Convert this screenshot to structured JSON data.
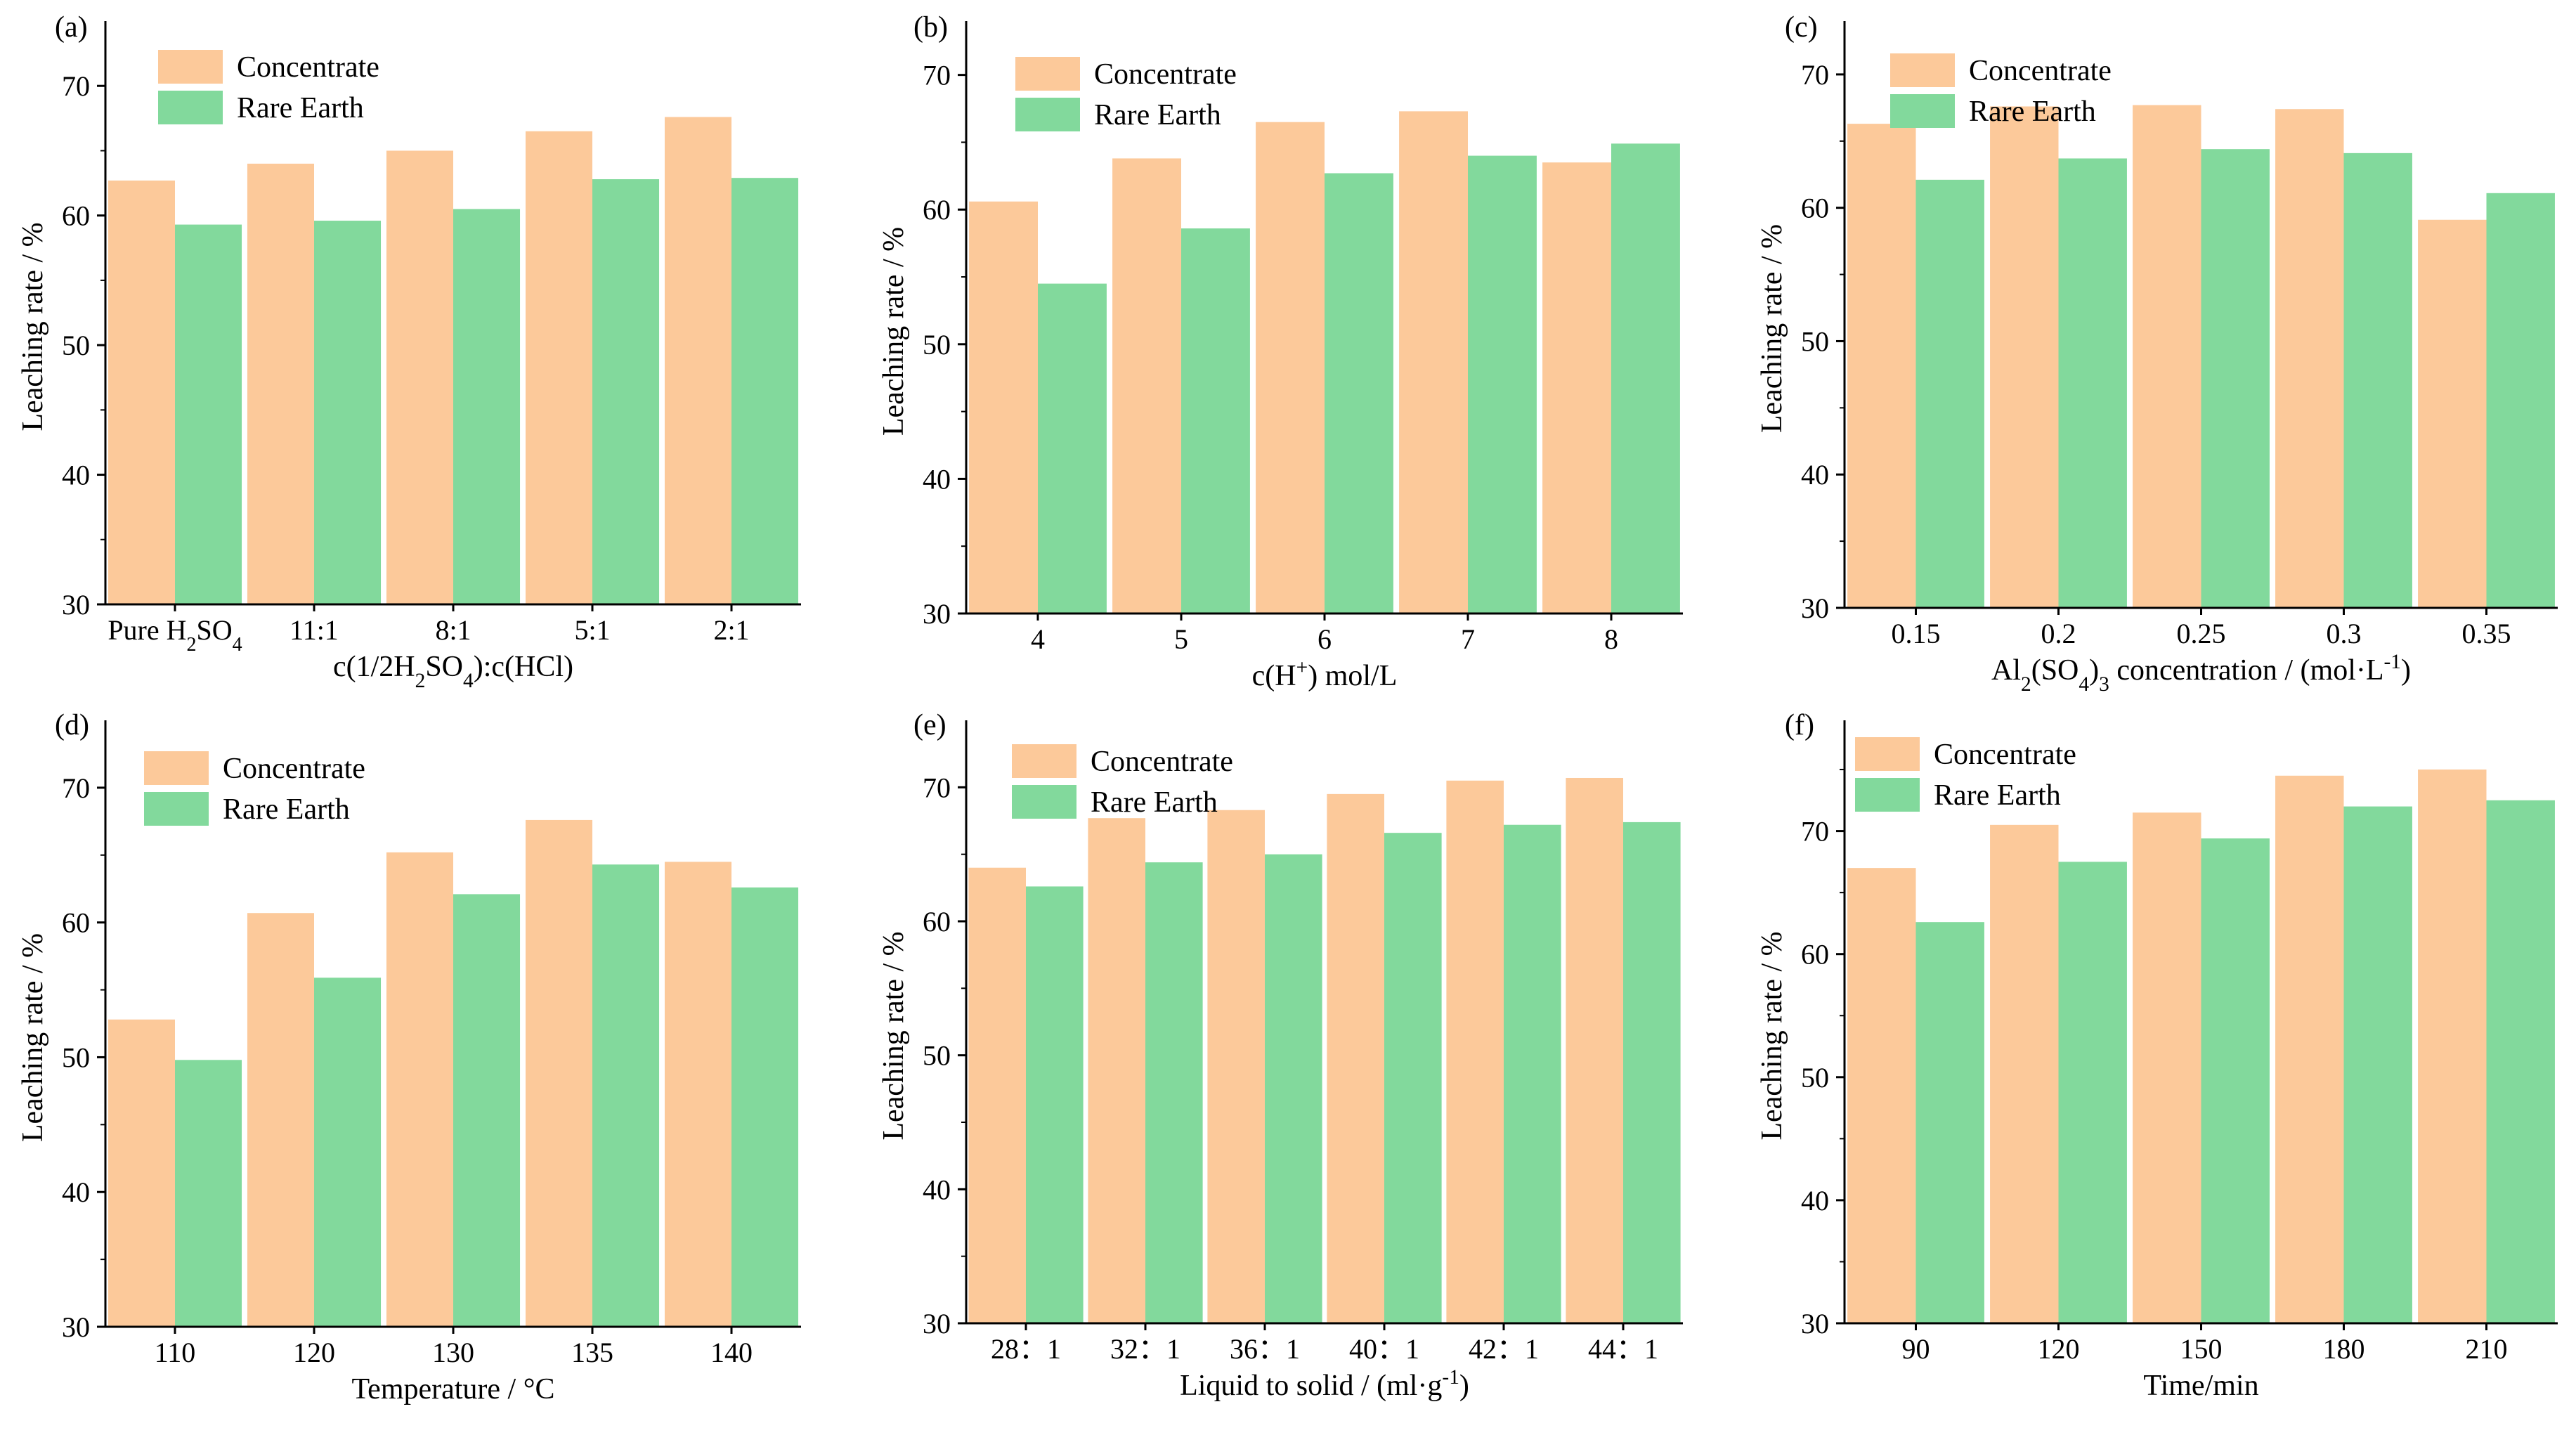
{
  "colors": {
    "concentrate": "#FCC99A",
    "rare_earth": "#82D99C",
    "axis": "#000000"
  },
  "legend": [
    "Concentrate",
    "Rare Earth"
  ],
  "chart_data": [
    {
      "type": "bar",
      "panel_label": "(a)",
      "categories": [
        "Pure H2SO4",
        "11:1",
        "8:1",
        "5:1",
        "2:1"
      ],
      "series": [
        {
          "name": "Concentrate",
          "values": [
            62.7,
            64.0,
            65.0,
            66.5,
            67.6
          ]
        },
        {
          "name": "Rare Earth",
          "values": [
            59.3,
            59.6,
            60.5,
            62.8,
            62.9
          ]
        }
      ],
      "xlabel": "c(1/2H2SO4):c(HCl)",
      "ylabel": "Leaching rate / %",
      "ylim": [
        30,
        75
      ],
      "yticks": [
        30,
        40,
        50,
        60,
        70
      ]
    },
    {
      "type": "bar",
      "panel_label": "(b)",
      "categories": [
        "4",
        "5",
        "6",
        "7",
        "8"
      ],
      "series": [
        {
          "name": "Concentrate",
          "values": [
            60.6,
            63.8,
            66.5,
            67.3,
            63.5
          ]
        },
        {
          "name": "Rare Earth",
          "values": [
            54.5,
            58.6,
            62.7,
            64.0,
            64.9
          ]
        }
      ],
      "xlabel": "c(H+) mol/L",
      "ylabel": "Leaching rate / %",
      "ylim": [
        30,
        74
      ],
      "yticks": [
        30,
        40,
        50,
        60,
        70
      ]
    },
    {
      "type": "bar",
      "panel_label": "(c)",
      "categories": [
        "0.15",
        "0.2",
        "0.25",
        "0.3",
        "0.35"
      ],
      "series": [
        {
          "name": "Concentrate",
          "values": [
            66.3,
            67.6,
            67.7,
            67.4,
            59.1
          ]
        },
        {
          "name": "Rare Earth",
          "values": [
            62.1,
            63.7,
            64.4,
            64.1,
            61.1
          ]
        }
      ],
      "xlabel": "Al2(SO4)3 concentration / (mol·L-1)",
      "ylabel": "Leaching rate / %",
      "ylim": [
        30,
        74
      ],
      "yticks": [
        30,
        40,
        50,
        60,
        70
      ]
    },
    {
      "type": "bar",
      "panel_label": "(d)",
      "categories": [
        "110",
        "120",
        "130",
        "135",
        "140"
      ],
      "series": [
        {
          "name": "Concentrate",
          "values": [
            52.8,
            60.7,
            65.2,
            67.6,
            64.5
          ]
        },
        {
          "name": "Rare Earth",
          "values": [
            49.8,
            55.9,
            62.1,
            64.3,
            62.6
          ]
        }
      ],
      "xlabel": "Temperature / °C",
      "ylabel": "Leaching rate / %",
      "ylim": [
        30,
        75
      ],
      "yticks": [
        30,
        40,
        50,
        60,
        70
      ]
    },
    {
      "type": "bar",
      "panel_label": "(e)",
      "categories": [
        "28：1",
        "32：1",
        "36：1",
        "40：1",
        "42：1",
        "44：1"
      ],
      "series": [
        {
          "name": "Concentrate",
          "values": [
            64.0,
            67.7,
            68.3,
            69.5,
            70.5,
            70.7
          ]
        },
        {
          "name": "Rare Earth",
          "values": [
            62.6,
            64.4,
            65.0,
            66.6,
            67.2,
            67.4
          ]
        }
      ],
      "xlabel": "Liquid to solid / (ml·g-1)",
      "ylabel": "Leaching rate / %",
      "ylim": [
        30,
        75
      ],
      "yticks": [
        30,
        40,
        50,
        60,
        70
      ]
    },
    {
      "type": "bar",
      "panel_label": "(f)",
      "categories": [
        "90",
        "120",
        "150",
        "180",
        "210"
      ],
      "series": [
        {
          "name": "Concentrate",
          "values": [
            67.0,
            70.5,
            71.5,
            74.5,
            75.0
          ]
        },
        {
          "name": "Rare Earth",
          "values": [
            62.6,
            67.5,
            69.4,
            72.0,
            72.5
          ]
        }
      ],
      "xlabel": "Time/min",
      "ylabel": "Leaching rate / %",
      "ylim": [
        30,
        79
      ],
      "yticks": [
        30,
        40,
        50,
        60,
        70
      ]
    }
  ]
}
